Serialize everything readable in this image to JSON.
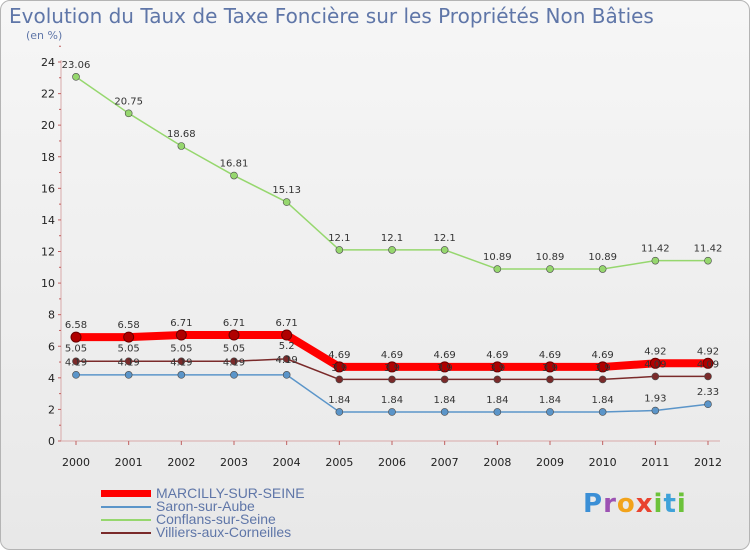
{
  "header": {
    "title": "Evolution du Taux de Taxe Foncière sur les Propriétés Non Bâties",
    "subtitle": "(en %)"
  },
  "brand": {
    "text": "Proxiti"
  },
  "chart_data": {
    "type": "line",
    "title": "Evolution du Taux de Taxe Foncière sur les Propriétés Non Bâties",
    "ylabel": "(en %)",
    "xlabel": "",
    "x": [
      "2000",
      "2001",
      "2002",
      "2003",
      "2004",
      "2005",
      "2006",
      "2007",
      "2008",
      "2009",
      "2010",
      "2011",
      "2012"
    ],
    "ylim": [
      0,
      24
    ],
    "yticks": [
      0,
      2,
      4,
      6,
      8,
      10,
      12,
      14,
      16,
      18,
      20,
      22,
      24
    ],
    "grid": false,
    "legend_position": "bottom-left",
    "series": [
      {
        "name": "MARCILLY-SUR-SEINE",
        "color": "#ff0000",
        "values": [
          6.58,
          6.58,
          6.71,
          6.71,
          6.71,
          4.69,
          4.69,
          4.69,
          4.69,
          4.69,
          4.69,
          4.92,
          4.92
        ]
      },
      {
        "name": "Saron-sur-Aube",
        "color": "#5b95c9",
        "values": [
          4.19,
          4.19,
          4.19,
          4.19,
          4.19,
          1.84,
          1.84,
          1.84,
          1.84,
          1.84,
          1.84,
          1.93,
          2.33
        ]
      },
      {
        "name": "Conflans-sur-Seine",
        "color": "#96d76e",
        "values": [
          23.06,
          20.75,
          18.68,
          16.81,
          15.13,
          12.1,
          12.1,
          12.1,
          10.89,
          10.89,
          10.89,
          11.42,
          11.42
        ]
      },
      {
        "name": "Villiers-aux-Corneilles",
        "color": "#7a2a2a",
        "values": [
          5.05,
          5.05,
          5.05,
          5.05,
          5.2,
          3.9,
          3.9,
          3.9,
          3.9,
          3.9,
          3.9,
          4.09,
          4.09
        ]
      }
    ],
    "data_labels": [
      [
        "6.58",
        "6.58",
        "6.71",
        "6.71",
        "6.71",
        "4.69",
        "4.69",
        "4.69",
        "4.69",
        "4.69",
        "4.69",
        "4.92",
        "4.92"
      ],
      [
        "",
        "",
        "",
        "",
        "",
        "1.84",
        "1.84",
        "1.84",
        "1.84",
        "1.84",
        "1.84",
        "1.93",
        "2.33"
      ],
      [
        "23.06",
        "20.75",
        "18.68",
        "16.81",
        "15.13",
        "12.1",
        "12.1",
        "12.1",
        "10.89",
        "10.89",
        "10.89",
        "11.42",
        "11.42"
      ],
      [
        "5.05",
        "5.05",
        "5.05",
        "5.05",
        "5.2",
        "3.9",
        "3.9",
        "3.9",
        "3.9",
        "3.9",
        "3.9",
        "4.09",
        "4.09"
      ],
      [
        "4.19",
        "4.19",
        "4.19",
        "4.19",
        "4.19",
        "",
        "",
        "",
        "",
        "",
        "",
        "",
        ""
      ]
    ]
  }
}
